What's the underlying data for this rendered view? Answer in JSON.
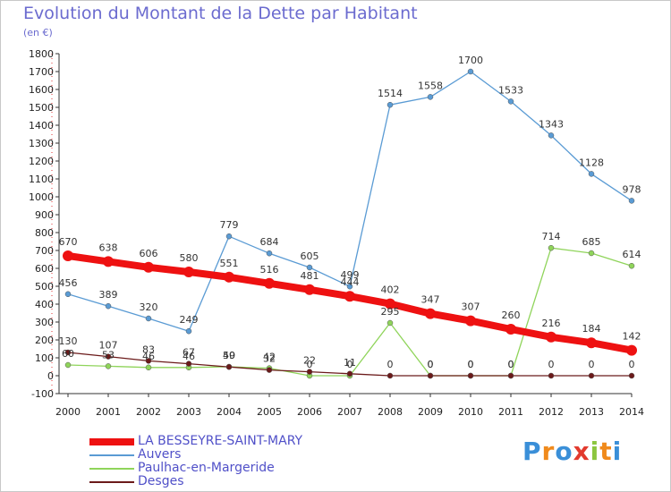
{
  "title": "Evolution du Montant de la Dette par Habitant",
  "subtitle": "(en €)",
  "logo": {
    "text": "Proxiti",
    "colors": [
      "#3a8fd8",
      "#f08a1c",
      "#3a8fd8",
      "#e23a2e",
      "#8cc63f",
      "#f08a1c",
      "#3a8fd8"
    ]
  },
  "chart_data": {
    "type": "line",
    "title": "Evolution du Montant de la Dette par Habitant",
    "ylabel": "(en €)",
    "xlabel": "",
    "ylim": [
      -100,
      1800
    ],
    "yticks": [
      "-100",
      "0",
      "100",
      "200",
      "300",
      "400",
      "500",
      "600",
      "700",
      "800",
      "900",
      "1000",
      "1100",
      "1200",
      "1300",
      "1400",
      "1500",
      "1600",
      "1700",
      "1800"
    ],
    "x": [
      "2000",
      "2001",
      "2002",
      "2003",
      "2004",
      "2005",
      "2006",
      "2007",
      "2008",
      "2009",
      "2010",
      "2011",
      "2012",
      "2013",
      "2014"
    ],
    "grid": false,
    "legend_position": "bottom-left",
    "series": [
      {
        "name": "Auvers",
        "color": "#5a9bd4",
        "values": [
          456,
          389,
          320,
          249,
          779,
          684,
          605,
          499,
          1514,
          1558,
          1700,
          1533,
          1343,
          1128,
          978
        ],
        "labels": [
          "456",
          "389",
          "320",
          "249",
          "779",
          "684",
          "605",
          "499",
          "1514",
          "1558",
          "1700",
          "1533",
          "1343",
          "1128",
          "978"
        ]
      },
      {
        "name": "Paulhac-en-Margeride",
        "color": "#8fd45a",
        "values": [
          60,
          53,
          46,
          46,
          50,
          42,
          0,
          0,
          295,
          0,
          0,
          0,
          714,
          685,
          614
        ],
        "labels": [
          "60",
          "53",
          "46",
          "46",
          "50",
          "42",
          "0",
          "0",
          "295",
          "0",
          "0",
          "0",
          "714",
          "685",
          "614"
        ]
      },
      {
        "name": "Desges",
        "color": "#6b1a1a",
        "values": [
          130,
          107,
          83,
          67,
          49,
          32,
          22,
          11,
          0,
          0,
          0,
          0,
          0,
          0,
          0
        ],
        "labels": [
          "130",
          "107",
          "83",
          "67",
          "49",
          "32",
          "22",
          "11",
          "0",
          "0",
          "0",
          "0",
          "0",
          "0",
          "0"
        ]
      },
      {
        "name": "LA BESSEYRE-SAINT-MARY",
        "color": "#ee1111",
        "values": [
          670,
          638,
          606,
          580,
          551,
          516,
          481,
          444,
          402,
          347,
          307,
          260,
          216,
          184,
          142
        ],
        "labels": [
          "670",
          "638",
          "606",
          "580",
          "551",
          "516",
          "481",
          "444",
          "402",
          "347",
          "307",
          "260",
          "216",
          "184",
          "142"
        ]
      }
    ],
    "legend_order": [
      "LA BESSEYRE-SAINT-MARY",
      "Auvers",
      "Paulhac-en-Margeride",
      "Desges"
    ]
  }
}
